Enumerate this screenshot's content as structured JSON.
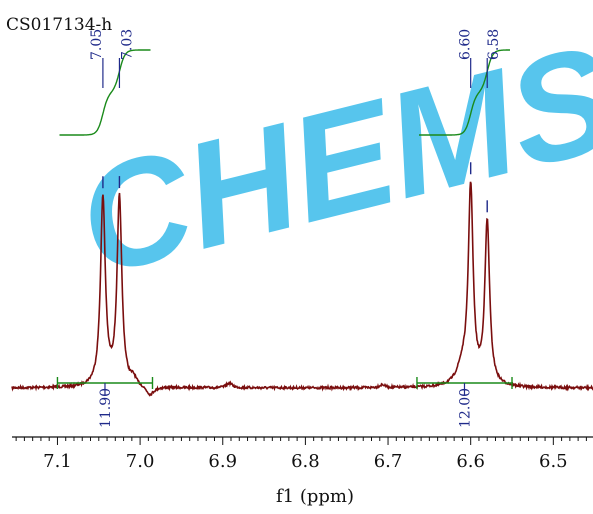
{
  "sample_id": "CS017134-h",
  "watermark": "CHEMSO",
  "colors": {
    "spectrum": "#7a0e0e",
    "integral": "#1a8a1a",
    "peak_label": "#1f2a8a",
    "axis": "#111111",
    "watermark": "#29b6e8"
  },
  "chart_data": {
    "type": "line",
    "title": "",
    "xlabel": "f1 (ppm)",
    "ylabel": "",
    "x_reversed": true,
    "xlim": [
      7.155,
      6.452
    ],
    "ylim": [
      0,
      1
    ],
    "x_ticks": [
      7.1,
      7.0,
      6.9,
      6.8,
      6.7,
      6.6,
      6.5
    ],
    "x_tick_labels": [
      "7.1",
      "7.0",
      "6.9",
      "6.8",
      "6.7",
      "6.6",
      "6.5"
    ],
    "grid": false,
    "legend": "none",
    "peaks": [
      {
        "shift": 7.045,
        "height": 0.96,
        "width": 0.0035,
        "label": "7.05"
      },
      {
        "shift": 7.025,
        "height": 0.96,
        "width": 0.0035,
        "label": "7.03"
      },
      {
        "shift": 6.6,
        "height": 1.0,
        "width": 0.0035,
        "label": "6.60"
      },
      {
        "shift": 6.58,
        "height": 0.83,
        "width": 0.0035,
        "label": "6.58"
      }
    ],
    "minor_features": [
      {
        "shift": 6.61,
        "height": 0.09,
        "width": 0.008
      },
      {
        "shift": 6.892,
        "height": 0.025,
        "width": 0.004
      },
      {
        "shift": 7.008,
        "height": 0.035,
        "width": 0.004
      },
      {
        "shift": 6.988,
        "height": -0.045,
        "width": 0.006
      },
      {
        "shift": 6.707,
        "height": 0.015,
        "width": 0.004
      }
    ],
    "integrals": [
      {
        "from": 7.1,
        "to": 6.985,
        "value": "11.90"
      },
      {
        "from": 6.665,
        "to": 6.55,
        "value": "12.00"
      }
    ]
  }
}
